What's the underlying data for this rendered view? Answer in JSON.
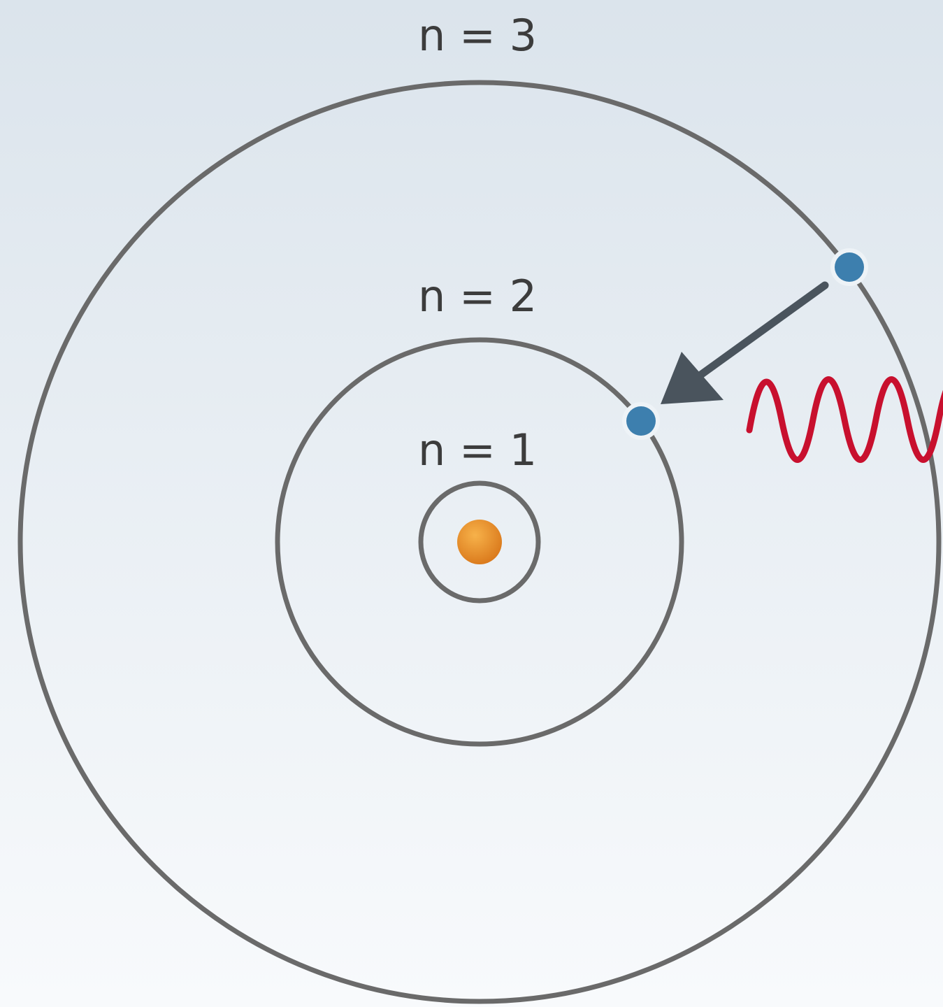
{
  "orbits": [
    {
      "label": "n = 3"
    },
    {
      "label": "n = 2"
    },
    {
      "label": "n = 1"
    }
  ]
}
